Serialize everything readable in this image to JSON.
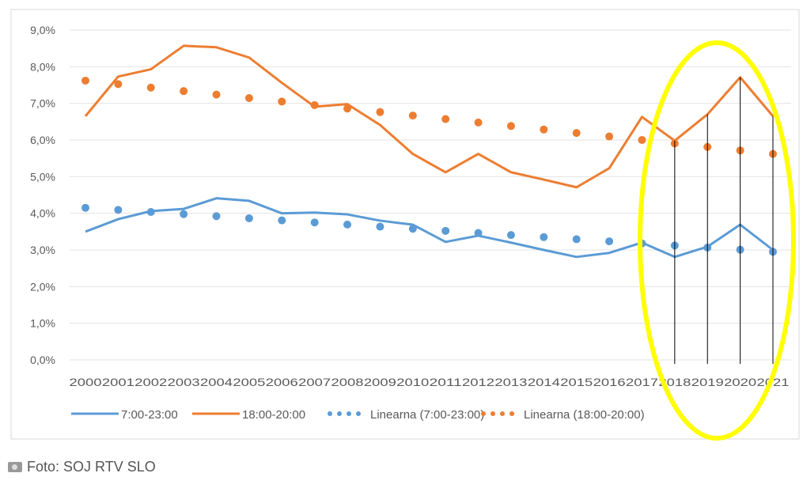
{
  "chart_data": {
    "type": "line",
    "title": "",
    "xlabel": "",
    "ylabel": "",
    "ylim": [
      0,
      9
    ],
    "y_ticks": [
      "0,0%",
      "1,0%",
      "2,0%",
      "3,0%",
      "4,0%",
      "5,0%",
      "6,0%",
      "7,0%",
      "8,0%",
      "9,0%"
    ],
    "x": [
      "2000",
      "2001",
      "2002",
      "2003",
      "2004",
      "2005",
      "2006",
      "2007",
      "2008",
      "2009",
      "2010",
      "2011",
      "2012",
      "2013",
      "2014",
      "2015",
      "2016",
      "2017",
      "2018",
      "2019",
      "2020",
      "2021"
    ],
    "grid": true,
    "legend_position": "bottom",
    "series": [
      {
        "name": "7:00-23:00",
        "style": "solid",
        "color": "#5b9bd5",
        "values": [
          3.5,
          3.84,
          4.06,
          4.12,
          4.41,
          4.34,
          4.0,
          4.02,
          3.97,
          3.8,
          3.69,
          3.22,
          3.39,
          3.2,
          3.0,
          2.81,
          2.92,
          3.2,
          2.81,
          3.09,
          3.69,
          3.0
        ]
      },
      {
        "name": "18:00-20:00",
        "style": "solid",
        "color": "#ed7d31",
        "values": [
          6.65,
          7.73,
          7.93,
          8.57,
          8.53,
          8.25,
          7.56,
          6.91,
          6.98,
          6.41,
          5.62,
          5.12,
          5.62,
          5.12,
          4.92,
          4.71,
          5.23,
          6.63,
          5.98,
          6.7,
          7.71,
          6.65
        ]
      },
      {
        "name": "Linearna (7:00-23:00)",
        "style": "dotted",
        "color": "#5b9bd5",
        "trend": [
          4.15,
          2.95
        ]
      },
      {
        "name": "Linearna (18:00-20:00)",
        "style": "dotted",
        "color": "#ed7d31",
        "trend": [
          7.62,
          5.62
        ]
      }
    ],
    "annotations": {
      "highlight_years": [
        "2018",
        "2019",
        "2020",
        "2021"
      ],
      "ellipse_color": "#ffff00"
    }
  },
  "caption": {
    "icon": "camera-icon",
    "text": "Foto: SOJ RTV SLO"
  }
}
